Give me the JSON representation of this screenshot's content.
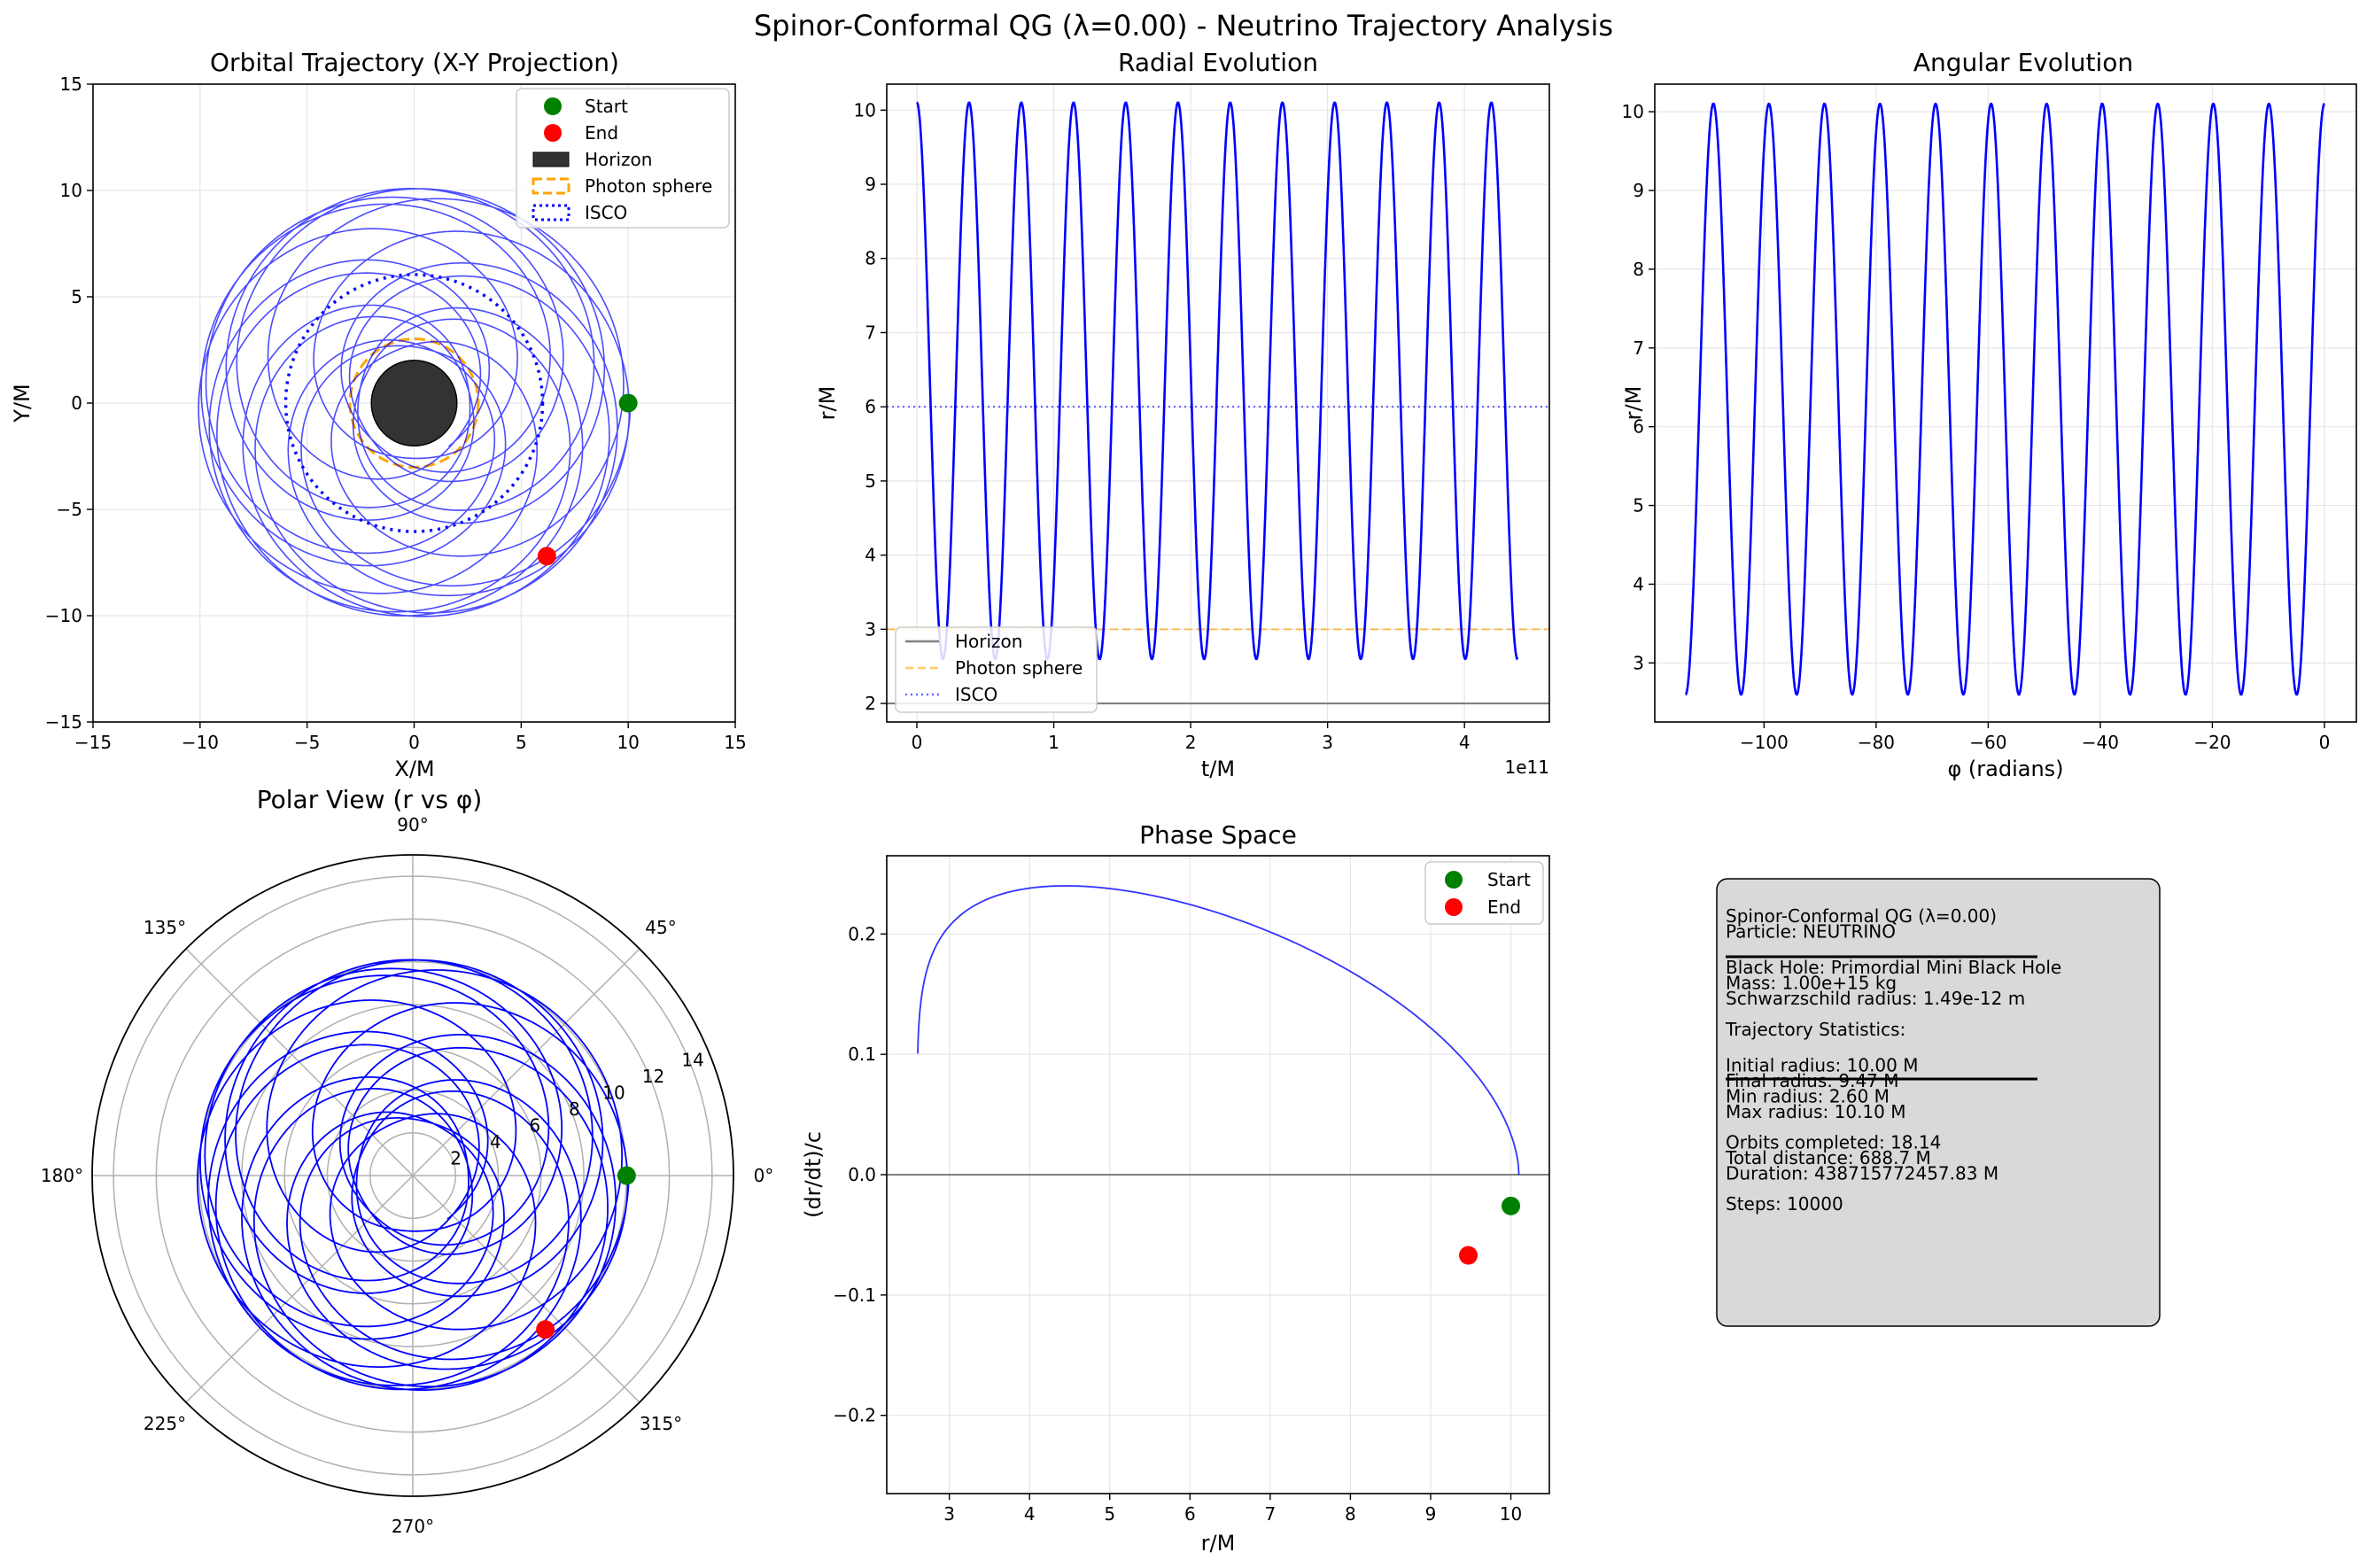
{
  "figure": {
    "title": "Spinor-Conformal QG (λ=0.00) - Neutrino Trajectory Analysis"
  },
  "colors": {
    "trajectory": "#0000ff",
    "start": "#008000",
    "end": "#ff0000",
    "horizon": "#333333",
    "photon_sphere": "#ffa500",
    "isco": "#0000ff",
    "grid": "#e6e6e6",
    "info_box_bg": "#d9d9d9"
  },
  "chart_data": [
    {
      "id": "xy",
      "type": "line",
      "title": "Orbital Trajectory (X-Y Projection)",
      "xlabel": "X/M",
      "ylabel": "Y/M",
      "xlim": [
        -15,
        15
      ],
      "ylim": [
        -15,
        15
      ],
      "xticks": [
        "−15",
        "−10",
        "−5",
        "0",
        "5",
        "10",
        "15"
      ],
      "yticks": [
        "−15",
        "−10",
        "−5",
        "0",
        "5",
        "10",
        "15"
      ],
      "grid": true,
      "legend_position": "upper right",
      "legend": [
        "Start",
        "End",
        "Horizon",
        "Photon sphere",
        "ISCO"
      ],
      "start_point": [
        10.0,
        0.0
      ],
      "end_point": [
        6.2,
        -7.2
      ],
      "horizon_radius": 2.0,
      "photon_sphere_radius": 3.0,
      "isco_radius": 6.0
    },
    {
      "id": "radial",
      "type": "line",
      "title": "Radial Evolution",
      "xlabel": "t/M",
      "ylabel": "r/M",
      "x_offset_label": "1e11",
      "xlim": [
        -0.22,
        4.62
      ],
      "ylim": [
        1.75,
        10.35
      ],
      "xticks": [
        "0",
        "1",
        "2",
        "3",
        "4"
      ],
      "yticks": [
        "2",
        "3",
        "4",
        "5",
        "6",
        "7",
        "8",
        "9",
        "10"
      ],
      "grid": true,
      "legend_position": "lower left",
      "legend": [
        "Horizon",
        "Photon sphere",
        "ISCO"
      ],
      "x_range": [
        0,
        4.387
      ],
      "oscillations": 11.5,
      "r_min": 2.6,
      "r_max": 10.1,
      "r_initial": 10.0,
      "r_final": 9.47,
      "horizon": 2,
      "photon_sphere": 3,
      "isco": 6
    },
    {
      "id": "angular",
      "type": "line",
      "title": "Angular Evolution",
      "xlabel": "φ (radians)",
      "ylabel": "r/M",
      "xlim": [
        -119.5,
        5.7
      ],
      "ylim": [
        2.25,
        10.35
      ],
      "xticks": [
        "−100",
        "−80",
        "−60",
        "−40",
        "−20",
        "0"
      ],
      "yticks": [
        "3",
        "4",
        "5",
        "6",
        "7",
        "8",
        "9",
        "10"
      ],
      "grid": true,
      "phi_range": [
        0,
        -114.0
      ],
      "oscillations": 11.5,
      "r_min": 2.6,
      "r_max": 10.1
    },
    {
      "id": "polar",
      "type": "line",
      "title": "Polar View (r vs φ)",
      "rmax": 15,
      "rticks": [
        "2",
        "4",
        "6",
        "8",
        "10",
        "12",
        "14"
      ],
      "angle_ticks": [
        "0°",
        "45°",
        "90°",
        "135°",
        "180°",
        "225°",
        "270°",
        "315°"
      ],
      "grid": true,
      "start_point": [
        10.0,
        0.0
      ],
      "end_point": [
        6.2,
        -7.2
      ]
    },
    {
      "id": "phase",
      "type": "line",
      "title": "Phase Space",
      "xlabel": "r/M",
      "ylabel": "(dr/dt)/c",
      "xlim": [
        2.22,
        10.48
      ],
      "ylim": [
        -0.265,
        0.265
      ],
      "xticks": [
        "3",
        "4",
        "5",
        "6",
        "7",
        "8",
        "9",
        "10"
      ],
      "yticks": [
        "−0.2",
        "−0.1",
        "0.0",
        "0.1",
        "0.2"
      ],
      "grid": true,
      "legend_position": "upper right",
      "legend": [
        "Start",
        "End"
      ],
      "start_point": [
        10.0,
        -0.026
      ],
      "end_point": [
        9.47,
        -0.067
      ],
      "r_min": 2.6,
      "r_max": 10.1,
      "v_peak": 0.24,
      "r_at_peak": 4.55
    }
  ],
  "info": {
    "lines": [
      "Spinor-Conformal QG (λ=0.00)",
      "Particle: NEUTRINO",
      "",
      "Black Hole: Primordial Mini Black Hole",
      "Mass: 1.00e+15 kg",
      "Schwarzschild radius: 1.49e-12 m",
      "",
      "Trajectory Statistics:",
      "",
      "Initial radius: 10.00 M",
      "Final radius: 9.47 M",
      "Min radius: 2.60 M",
      "Max radius: 10.10 M",
      "",
      "Orbits completed: 18.14",
      "Total distance: 688.7 M",
      "Duration: 438715772457.83 M",
      "",
      "Steps: 10000"
    ]
  }
}
